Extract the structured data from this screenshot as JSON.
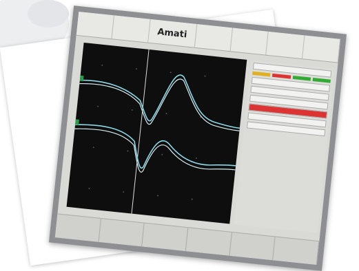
{
  "toolbar": {
    "title": "Amati"
  }
}
